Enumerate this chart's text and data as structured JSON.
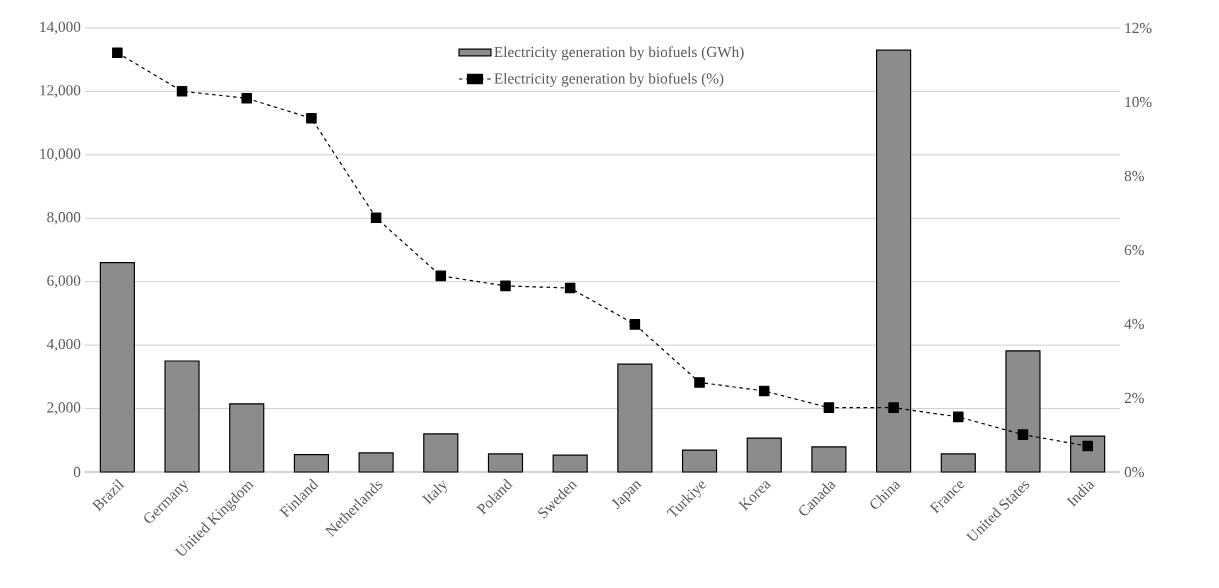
{
  "chart_data": {
    "type": "bar",
    "categories": [
      "Brazil",
      "Germany",
      "United Kingdom",
      "Finland",
      "Netherlands",
      "Italy",
      "Poland",
      "Sweden",
      "Japan",
      "Turkiye",
      "Korea",
      "Canada",
      "China",
      "France",
      "United States",
      "India"
    ],
    "series": [
      {
        "name": "Electricity generation by biofuels (GWh)",
        "color": "#8c8c8c",
        "values": [
          6600,
          3500,
          2150,
          550,
          600,
          1200,
          570,
          530,
          3400,
          690,
          1070,
          790,
          13300,
          570,
          3820,
          1130
        ]
      },
      {
        "name": "Electricity generation by biofuels (%)",
        "type": "line",
        "axis": "y2",
        "color": "#000000",
        "marker": "square",
        "line_style": "dashed",
        "values": [
          11.33,
          10.29,
          10.1,
          9.56,
          6.87,
          5.3,
          5.03,
          4.97,
          3.99,
          2.42,
          2.19,
          1.74,
          1.74,
          1.49,
          1.01,
          0.7
        ]
      }
    ],
    "ylim": [
      0,
      14000
    ],
    "yticks": [
      0,
      {
        "value": 2000,
        "label": "2,000"
      },
      {
        "value": 4000,
        "label": "4,000"
      },
      {
        "value": 6000,
        "label": "6,000"
      },
      {
        "value": 8000,
        "label": "8,000"
      },
      {
        "value": 10000,
        "label": "10,000"
      },
      {
        "value": 12000,
        "label": "12,000"
      },
      {
        "value": 14000,
        "label": "14,000"
      }
    ],
    "y2lim": [
      0,
      12
    ],
    "y2ticks": [
      {
        "value": 0,
        "label": "0%"
      },
      {
        "value": 2,
        "label": "2%"
      },
      {
        "value": 4,
        "label": "4%"
      },
      {
        "value": 6,
        "label": "6%"
      },
      {
        "value": 8,
        "label": "8%"
      },
      {
        "value": 10,
        "label": "10%"
      },
      {
        "value": 12,
        "label": "12%"
      }
    ],
    "grid": "y",
    "legend": "top"
  }
}
